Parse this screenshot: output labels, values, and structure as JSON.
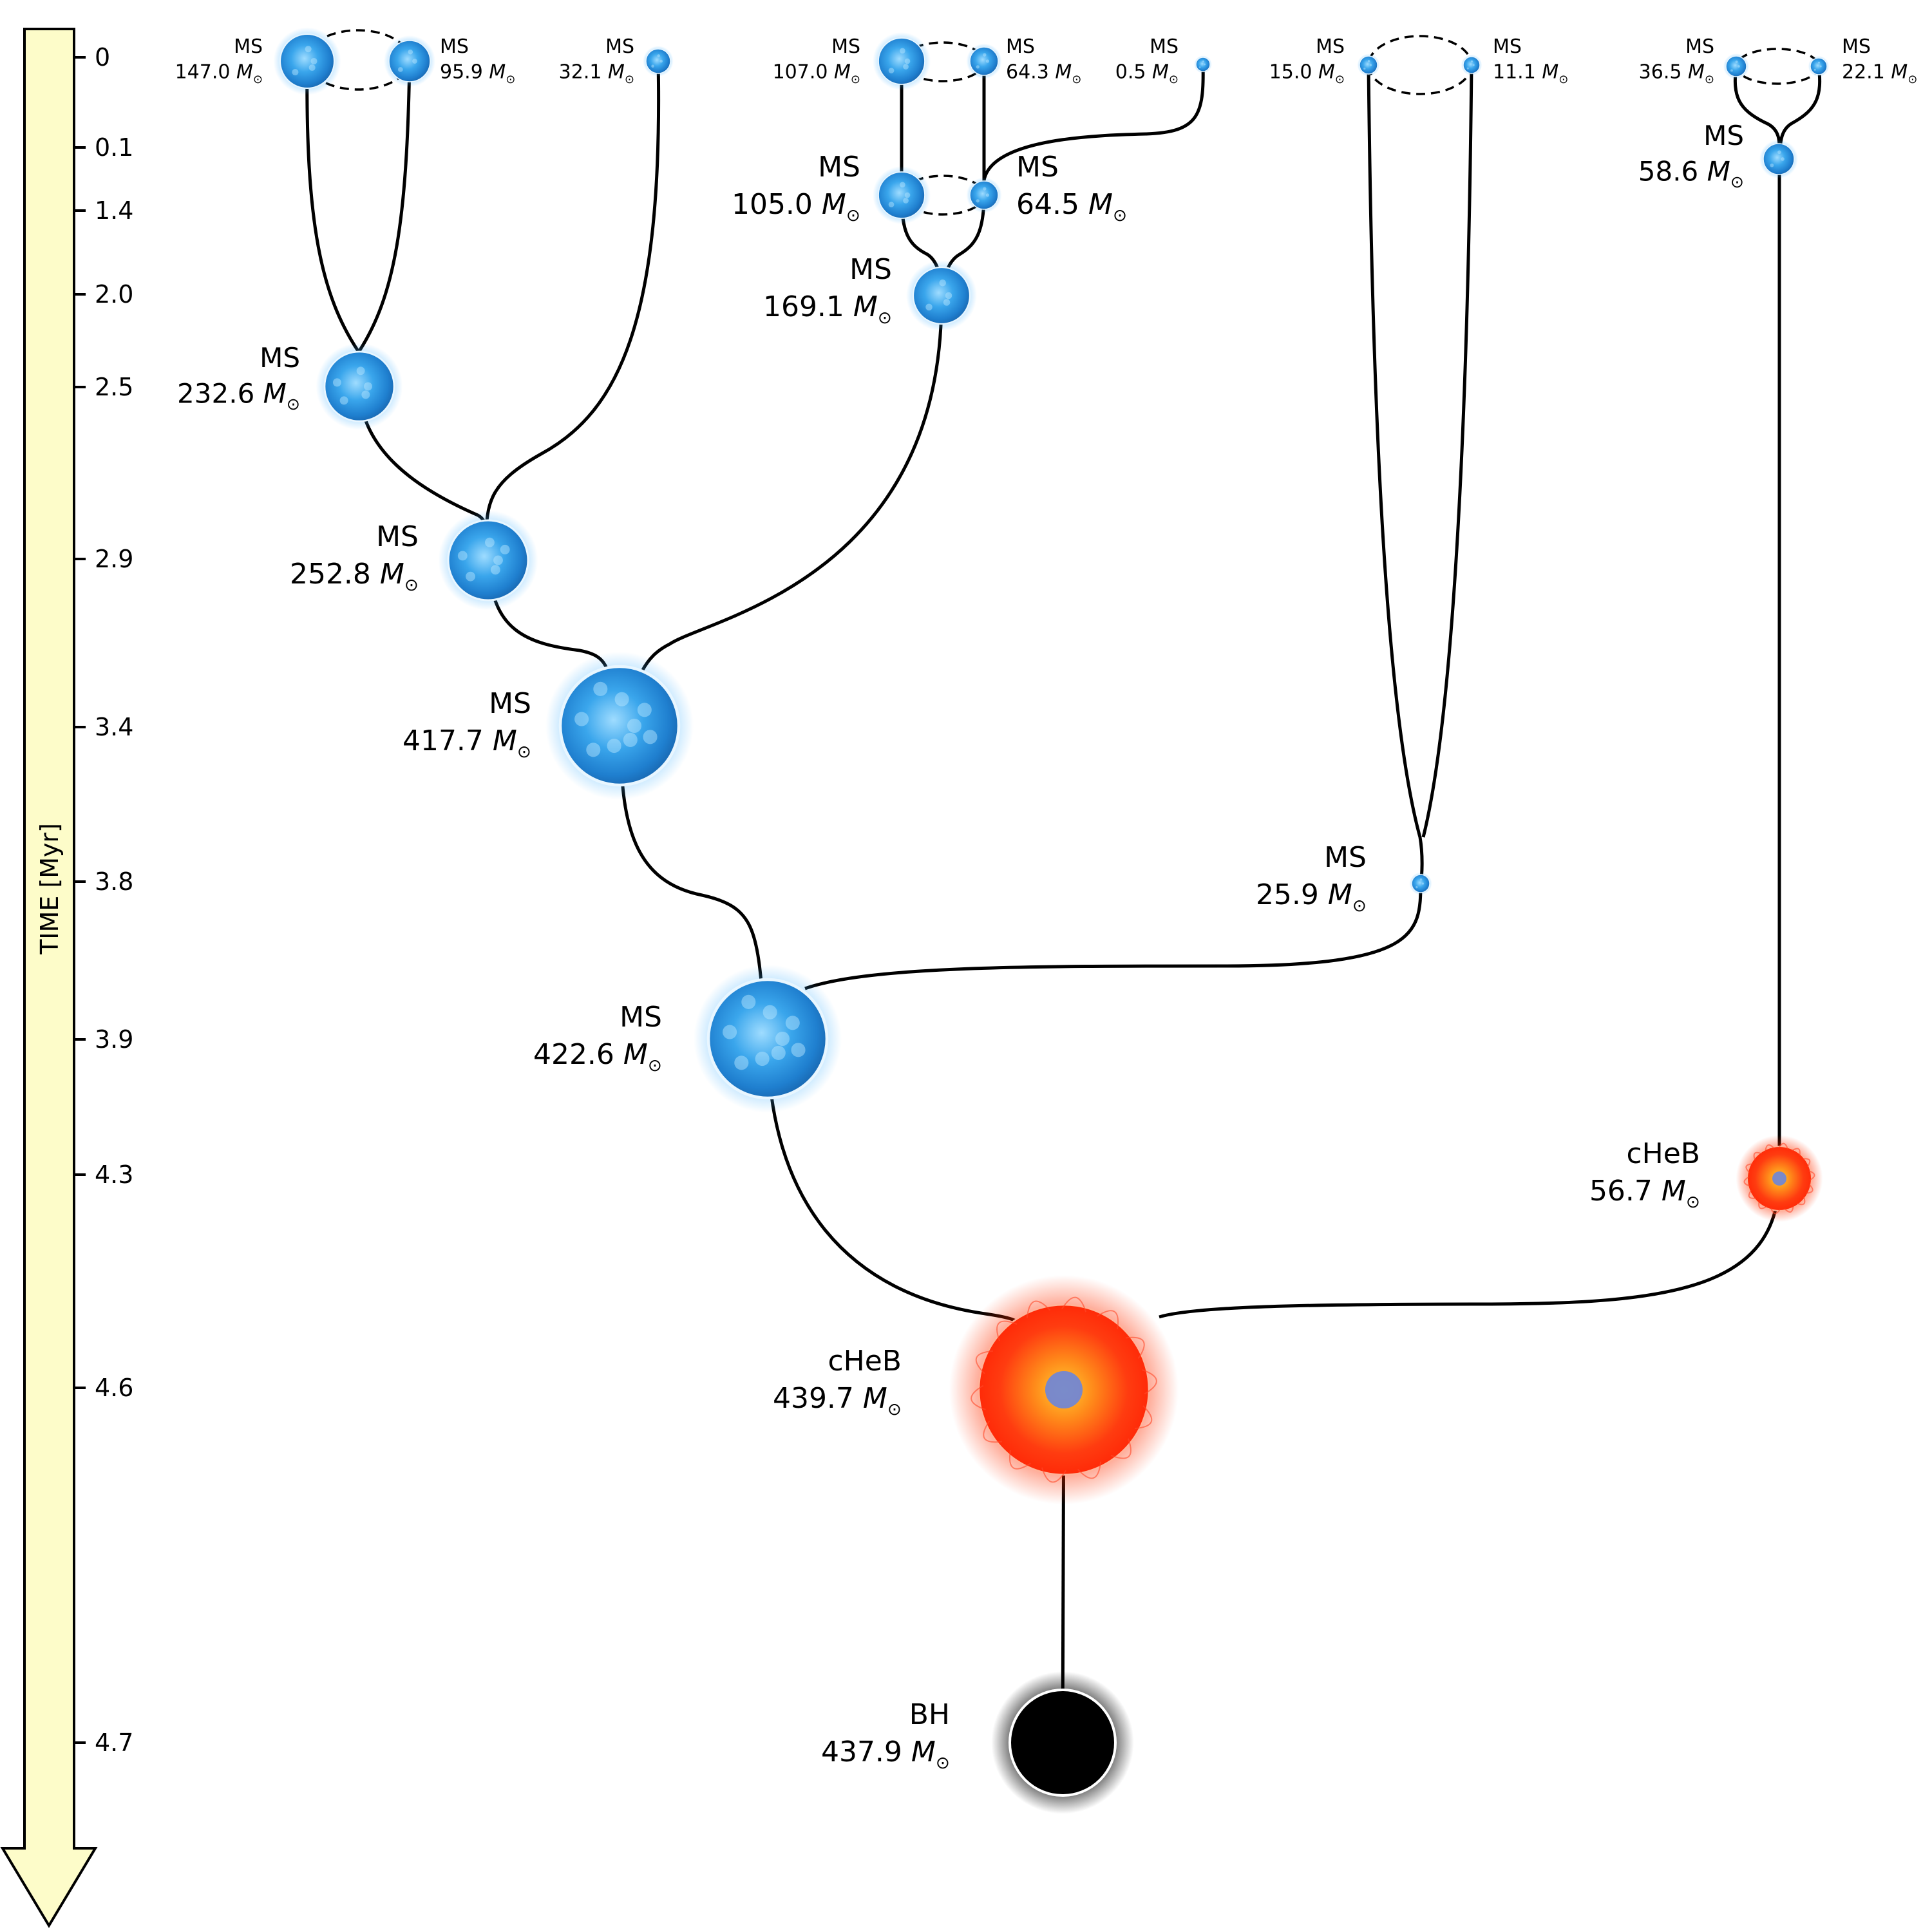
{
  "time_axis": {
    "label": "TIME [Myr]",
    "ticks": [
      "0",
      "0.1",
      "1.4",
      "2.0",
      "2.5",
      "2.9",
      "3.4",
      "3.8",
      "3.9",
      "4.3",
      "4.6",
      "4.7"
    ]
  },
  "mass_unit": "M",
  "mass_unit_symbol": "⊙",
  "colors": {
    "axis_fill": "#fdfcc9",
    "main_sequence": "#2f95e0",
    "core_helium_burning": "#ff3a0f",
    "black_hole": "#000000",
    "edges": "#000000"
  },
  "stars": [
    {
      "id": "s1",
      "type": "MS",
      "mass": "147.0",
      "icon": "blue-star-icon"
    },
    {
      "id": "s2",
      "type": "MS",
      "mass": "95.9",
      "icon": "blue-star-icon"
    },
    {
      "id": "s3",
      "type": "MS",
      "mass": "32.1",
      "icon": "blue-star-icon"
    },
    {
      "id": "s4",
      "type": "MS",
      "mass": "107.0",
      "icon": "blue-star-icon"
    },
    {
      "id": "s5",
      "type": "MS",
      "mass": "64.3",
      "icon": "blue-star-icon"
    },
    {
      "id": "s6",
      "type": "MS",
      "mass": "0.5",
      "icon": "blue-star-icon"
    },
    {
      "id": "s7",
      "type": "MS",
      "mass": "15.0",
      "icon": "blue-star-icon"
    },
    {
      "id": "s8",
      "type": "MS",
      "mass": "11.1",
      "icon": "blue-star-icon"
    },
    {
      "id": "s9",
      "type": "MS",
      "mass": "36.5",
      "icon": "blue-star-icon"
    },
    {
      "id": "s10",
      "type": "MS",
      "mass": "22.1",
      "icon": "blue-star-icon"
    },
    {
      "id": "s11",
      "type": "MS",
      "mass": "58.6",
      "icon": "blue-star-icon"
    },
    {
      "id": "s12",
      "type": "MS",
      "mass": "105.0",
      "icon": "blue-star-icon"
    },
    {
      "id": "s13",
      "type": "MS",
      "mass": "64.5",
      "icon": "blue-star-icon"
    },
    {
      "id": "s14",
      "type": "MS",
      "mass": "169.1",
      "icon": "blue-star-icon"
    },
    {
      "id": "s15",
      "type": "MS",
      "mass": "232.6",
      "icon": "blue-star-icon"
    },
    {
      "id": "s16",
      "type": "MS",
      "mass": "252.8",
      "icon": "blue-star-icon"
    },
    {
      "id": "s17",
      "type": "MS",
      "mass": "417.7",
      "icon": "blue-star-icon"
    },
    {
      "id": "s18",
      "type": "MS",
      "mass": "25.9",
      "icon": "blue-star-icon"
    },
    {
      "id": "s19",
      "type": "MS",
      "mass": "422.6",
      "icon": "blue-star-icon"
    },
    {
      "id": "s20",
      "type": "cHeB",
      "mass": "56.7",
      "icon": "red-giant-star-icon"
    },
    {
      "id": "s21",
      "type": "cHeB",
      "mass": "439.7",
      "icon": "red-giant-star-icon"
    },
    {
      "id": "s22",
      "type": "BH",
      "mass": "437.9",
      "icon": "black-hole-icon"
    }
  ]
}
